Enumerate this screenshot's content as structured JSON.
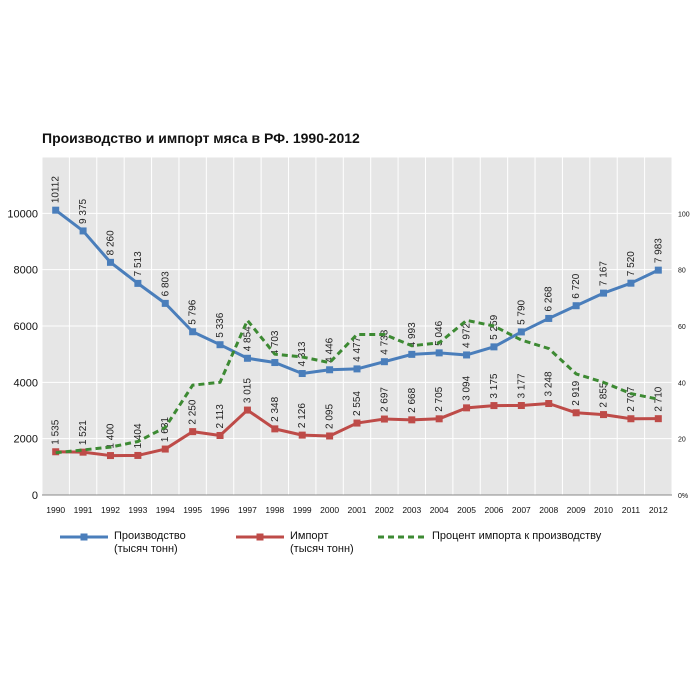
{
  "chart_data": {
    "type": "line",
    "title": "Производство и импорт мяса в РФ. 1990-2012",
    "x": [
      "1990",
      "1991",
      "1992",
      "1993",
      "1994",
      "1995",
      "1996",
      "1997",
      "1998",
      "1999",
      "2000",
      "2001",
      "2002",
      "2003",
      "2004",
      "2005",
      "2006",
      "2007",
      "2008",
      "2009",
      "2010",
      "2011",
      "2012"
    ],
    "ylim": [
      0,
      12000
    ],
    "y_ticks": [
      "0",
      "2000",
      "4000",
      "6000",
      "8000",
      "10000"
    ],
    "y2lim": [
      0,
      120
    ],
    "y2_ticks": [
      "0%",
      "20",
      "40",
      "60",
      "80",
      "100"
    ],
    "grid": true,
    "legend_position": "bottom",
    "series": [
      {
        "name": "Производство",
        "name_line2": "(тысяч тонн)",
        "axis": "left",
        "color": "#4a7ebb",
        "marker": "square",
        "values": [
          10112,
          9375,
          8260,
          7513,
          6803,
          5796,
          5336,
          4854,
          4703,
          4313,
          4446,
          4477,
          4733,
          4993,
          5046,
          4972,
          5259,
          5790,
          6268,
          6720,
          7167,
          7520,
          7983
        ],
        "labels": [
          "10112",
          "9 375",
          "8 260",
          "7 513",
          "6 803",
          "5 796",
          "5 336",
          "4 854",
          "4 703",
          "4 313",
          "4 446",
          "4 477",
          "4 733",
          "4 993",
          "5 046",
          "4 972",
          "5 259",
          "5 790",
          "6 268",
          "6 720",
          "7 167",
          "7 520",
          "7 983"
        ]
      },
      {
        "name": "Импорт",
        "name_line2": "(тысяч тонн)",
        "axis": "left",
        "color": "#be4b48",
        "marker": "square",
        "values": [
          1535,
          1521,
          1400,
          1404,
          1631,
          2250,
          2113,
          3015,
          2348,
          2126,
          2095,
          2554,
          2697,
          2668,
          2705,
          3094,
          3175,
          3177,
          3248,
          2919,
          2855,
          2707,
          2710
        ],
        "labels": [
          "1 535",
          "1 521",
          "1 400",
          "1 404",
          "1 631",
          "2 250",
          "2 113",
          "3 015",
          "2 348",
          "2 126",
          "2 095",
          "2 554",
          "2 697",
          "2 668",
          "2 705",
          "3 094",
          "3 175",
          "3 177",
          "3 248",
          "2 919",
          "2 855",
          "2 707",
          "2 710"
        ]
      },
      {
        "name": "Процент импорта к производству",
        "axis": "right",
        "color": "#3d8a33",
        "dashed": true,
        "values": [
          15,
          16,
          17,
          19,
          24,
          39,
          40,
          62,
          50,
          49,
          47,
          57,
          57,
          53,
          54,
          62,
          60,
          55,
          52,
          43,
          40,
          36,
          34
        ]
      }
    ]
  }
}
